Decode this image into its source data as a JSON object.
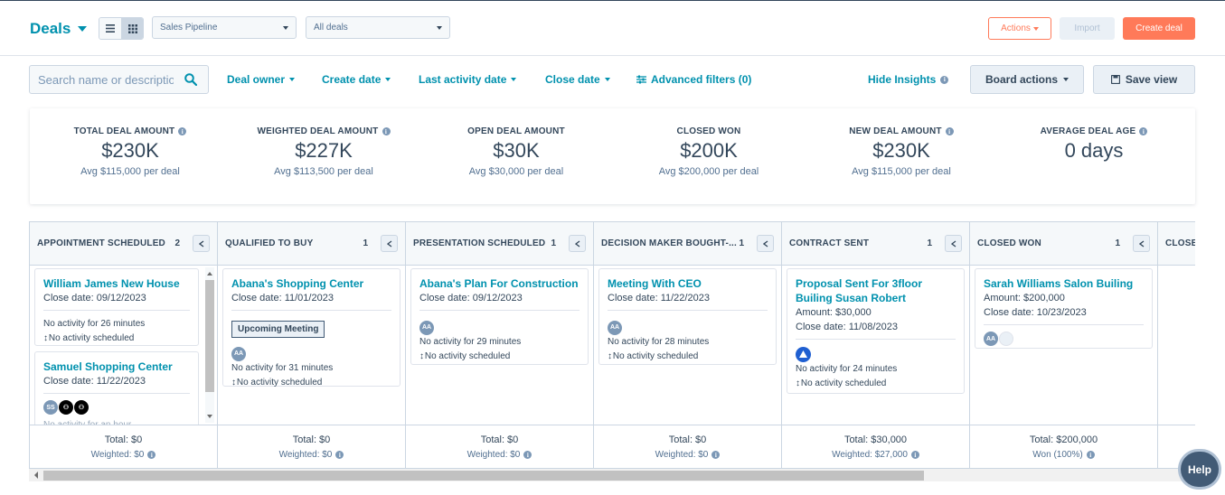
{
  "header": {
    "title": "Deals",
    "pipeline": "Sales Pipeline",
    "view": "All deals",
    "actions_label": "Actions",
    "import_label": "Import",
    "create_label": "Create deal"
  },
  "filters": {
    "search_placeholder": "Search name or description",
    "deal_owner": "Deal owner",
    "create_date": "Create date",
    "last_activity_date": "Last activity date",
    "close_date": "Close date",
    "advanced": "Advanced filters (0)",
    "hide_insights": "Hide Insights",
    "board_actions": "Board actions",
    "save_view": "Save view"
  },
  "insights": [
    {
      "label": "TOTAL DEAL AMOUNT",
      "value": "$230K",
      "sub": "Avg $115,000 per deal",
      "info": true
    },
    {
      "label": "WEIGHTED DEAL AMOUNT",
      "value": "$227K",
      "sub": "Avg $113,500 per deal",
      "info": true
    },
    {
      "label": "OPEN DEAL AMOUNT",
      "value": "$30K",
      "sub": "Avg $30,000 per deal",
      "info": false
    },
    {
      "label": "CLOSED WON",
      "value": "$200K",
      "sub": "Avg $200,000 per deal",
      "info": false
    },
    {
      "label": "NEW DEAL AMOUNT",
      "value": "$230K",
      "sub": "Avg $115,000 per deal",
      "info": true
    },
    {
      "label": "AVERAGE DEAL AGE",
      "value": "0 days",
      "sub": "",
      "info": true
    }
  ],
  "columns": [
    {
      "name": "APPOINTMENT SCHEDULED",
      "count": "2",
      "total": "Total: $0",
      "weighted": "Weighted: $0"
    },
    {
      "name": "QUALIFIED TO BUY",
      "count": "1",
      "total": "Total: $0",
      "weighted": "Weighted: $0"
    },
    {
      "name": "PRESENTATION SCHEDULED",
      "count": "1",
      "total": "Total: $0",
      "weighted": "Weighted: $0"
    },
    {
      "name": "DECISION MAKER BOUGHT-...",
      "count": "1",
      "total": "Total: $0",
      "weighted": "Weighted: $0"
    },
    {
      "name": "CONTRACT SENT",
      "count": "1",
      "total": "Total: $30,000",
      "weighted": "Weighted: $27,000"
    },
    {
      "name": "CLOSED WON",
      "count": "1",
      "total": "Total: $200,000",
      "weighted": "Won (100%)"
    },
    {
      "name": "CLOSE",
      "count": "",
      "total": "",
      "weighted": ""
    }
  ],
  "cards": {
    "c1": {
      "name": "William James New House",
      "close": "Close date: 09/12/2023",
      "activity": "No activity for 26 minutes",
      "scheduled": "No activity scheduled"
    },
    "c2": {
      "name": "Samuel Shopping Center",
      "close": "Close date: 11/22/2023",
      "avatar": "SS",
      "activity": "No activity for an hour"
    },
    "c3": {
      "name": "Abana's Shopping Center",
      "close": "Close date: 11/01/2023",
      "tag": "Upcoming Meeting",
      "avatar": "AA",
      "activity": "No activity for 31 minutes",
      "scheduled": "No activity scheduled"
    },
    "c4": {
      "name": "Abana's Plan For Construction",
      "close": "Close date: 09/12/2023",
      "avatar": "AA",
      "activity": "No activity for 29 minutes",
      "scheduled": "No activity scheduled"
    },
    "c5": {
      "name": "Meeting With CEO",
      "close": "Close date: 11/22/2023",
      "avatar": "AA",
      "activity": "No activity for 28 minutes",
      "scheduled": "No activity scheduled"
    },
    "c6": {
      "name": "Proposal Sent For 3floor Builing Susan Robert",
      "amount": "Amount: $30,000",
      "close": "Close date: 11/08/2023",
      "activity": "No activity for 24 minutes",
      "scheduled": "No activity scheduled"
    },
    "c7": {
      "name": "Sarah Williams Salon Builing",
      "amount": "Amount: $200,000",
      "close": "Close date: 10/23/2023",
      "avatar": "AA"
    }
  },
  "help_label": "Help",
  "colors": {
    "accent": "#0091ae",
    "orange": "#ff7a59",
    "text": "#33475b"
  }
}
